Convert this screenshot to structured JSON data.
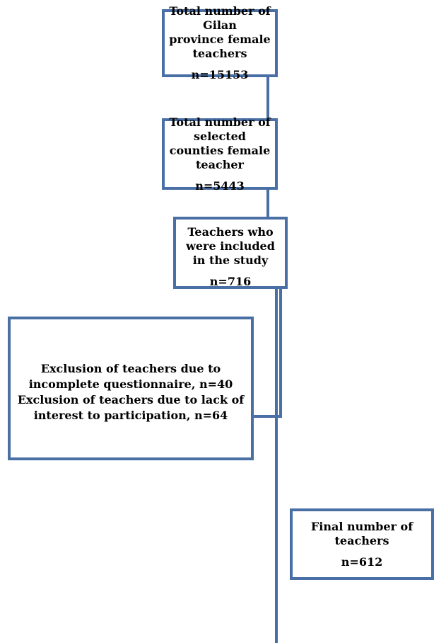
{
  "flowchart": {
    "nodes": [
      {
        "id": "total",
        "lines": [
          "Total number of Gilan",
          "province female teachers"
        ],
        "count": "n=15153"
      },
      {
        "id": "selected",
        "lines": [
          "Total number of selected",
          "counties female teacher"
        ],
        "count": "n=5443"
      },
      {
        "id": "included",
        "lines": [
          "Teachers who were included",
          "in the study"
        ],
        "count": "n=716"
      },
      {
        "id": "exclusion",
        "lines": [
          "Exclusion of teachers due to",
          "incomplete questionnaire, n=40",
          "Exclusion of teachers due to lack of",
          "interest to participation, n=64"
        ]
      },
      {
        "id": "final",
        "lines": [
          "Final number of",
          "teachers"
        ],
        "count": "n=612"
      }
    ],
    "colors": {
      "border": "#4a6fa5",
      "connector": "#4a6fa5",
      "text": "#000000",
      "background": "#ffffff"
    }
  }
}
